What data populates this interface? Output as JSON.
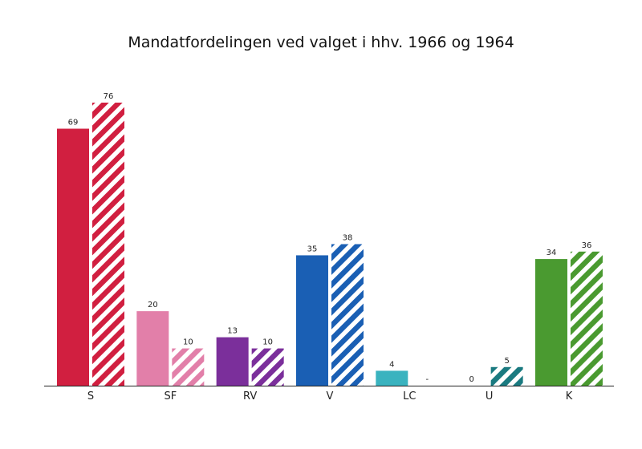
{
  "chart_data": {
    "type": "bar",
    "title": "Mandatfordelingen ved valget i hhv. 1966 og 1964",
    "categories": [
      "S",
      "SF",
      "RV",
      "V",
      "LC",
      "U",
      "K"
    ],
    "colors": [
      "#d11f40",
      "#e27fa9",
      "#7b2f9b",
      "#1a5fb4",
      "#3ab3bf",
      "#1a7a80",
      "#4a9a30"
    ],
    "series": [
      {
        "name": "1966",
        "pattern": "solid",
        "values": [
          69,
          20,
          13,
          35,
          4,
          0,
          34
        ],
        "labels": [
          "69",
          "20",
          "13",
          "35",
          "4",
          "0",
          "34"
        ]
      },
      {
        "name": "1964",
        "pattern": "hatched",
        "values": [
          76,
          10,
          10,
          38,
          null,
          5,
          36
        ],
        "labels": [
          "76",
          "10",
          "10",
          "38",
          "-",
          "5",
          "36"
        ]
      }
    ],
    "ylim": [
      0,
      76
    ],
    "grid": false,
    "xlabel": "",
    "ylabel": ""
  }
}
